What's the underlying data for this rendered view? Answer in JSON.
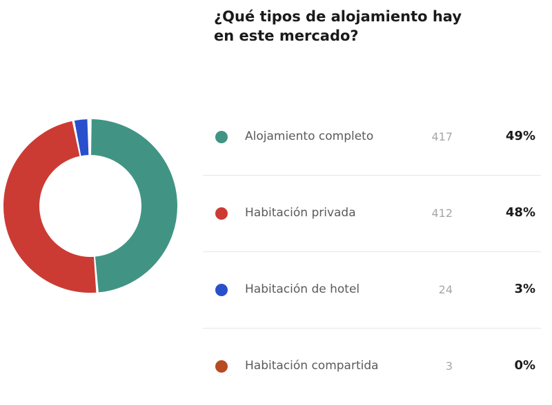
{
  "chart_data": {
    "type": "pie",
    "title": "¿Qué tipos de alojamiento hay en este mercado?",
    "categories": [
      "Alojamiento completo",
      "Habitación privada",
      "Habitación de hotel",
      "Habitación compartida"
    ],
    "values": [
      417,
      412,
      24,
      3
    ],
    "percentages": [
      "49%",
      "48%",
      "3%",
      "0%"
    ],
    "colors": [
      "#419484",
      "#cc3b33",
      "#2a4fcc",
      "#b84a22"
    ]
  },
  "legend": {
    "rows": [
      {
        "label": "Alojamiento completo",
        "count": "417",
        "pct": "49%"
      },
      {
        "label": "Habitación privada",
        "count": "412",
        "pct": "48%"
      },
      {
        "label": "Habitación de hotel",
        "count": "24",
        "pct": "3%"
      },
      {
        "label": "Habitación compartida",
        "count": "3",
        "pct": "0%"
      }
    ]
  }
}
